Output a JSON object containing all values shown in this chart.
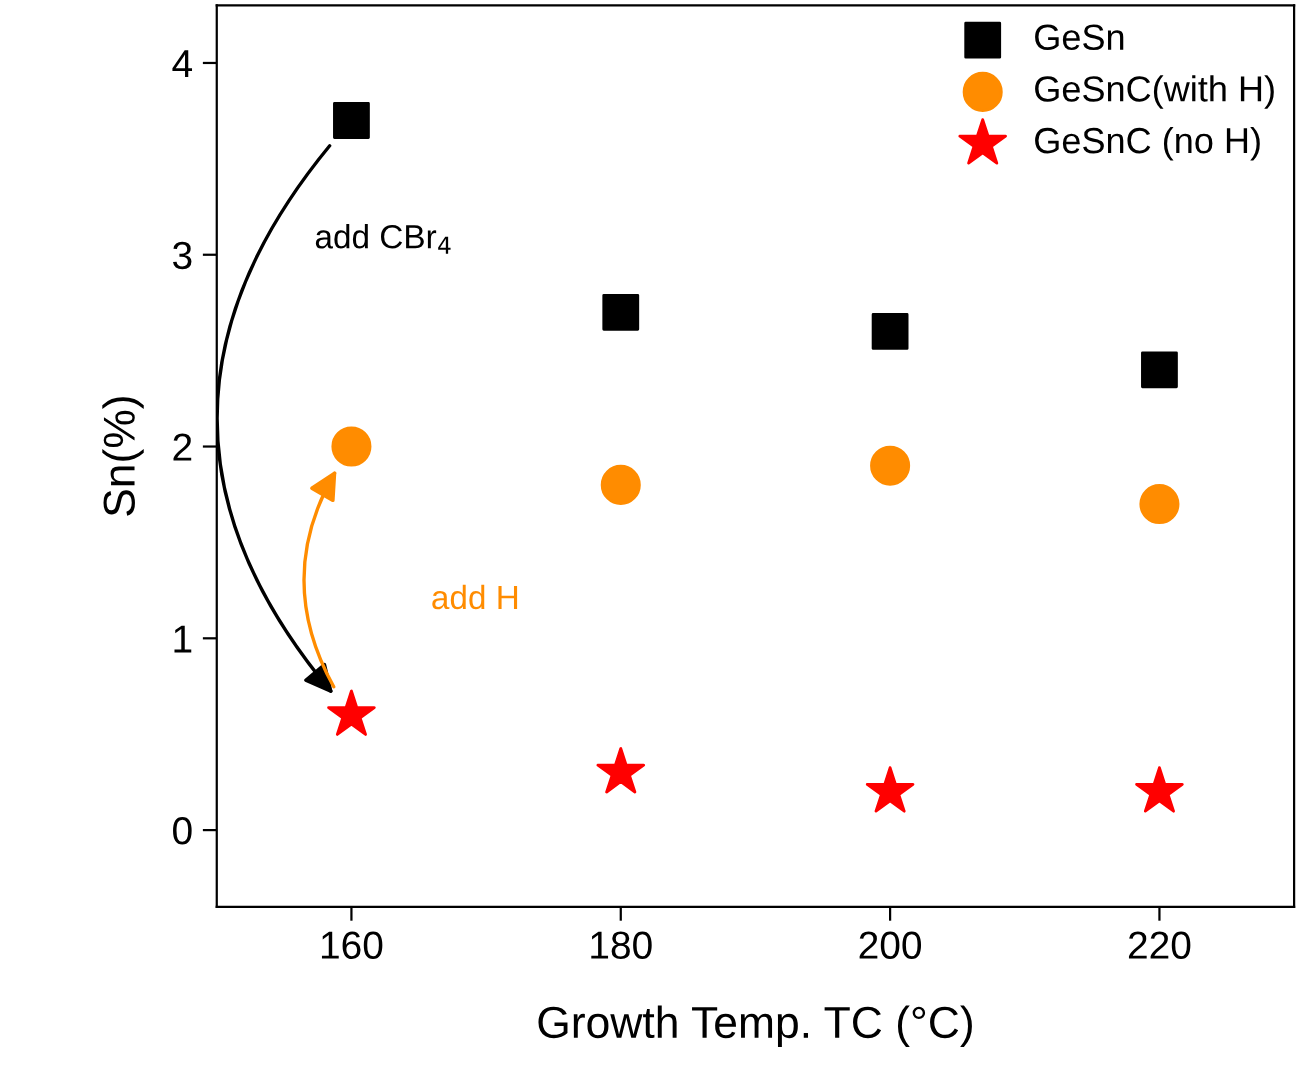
{
  "chart_data": {
    "type": "scatter",
    "xlabel": "Growth Temp. TC (°C)",
    "ylabel": "Sn(%)",
    "x": [
      160,
      180,
      200,
      220
    ],
    "series": [
      {
        "name": "GeSn",
        "color": "#000000",
        "marker": "square",
        "values": [
          3.7,
          2.7,
          2.6,
          2.4
        ]
      },
      {
        "name": "GeSnC(with H)",
        "color": "#ff8c00",
        "marker": "circle",
        "values": [
          2.0,
          1.8,
          1.9,
          1.7
        ]
      },
      {
        "name": "GeSnC (no H)",
        "color": "#ff0000",
        "marker": "star",
        "values": [
          0.6,
          0.3,
          0.2,
          0.2
        ]
      }
    ],
    "xlim": [
      150,
      230
    ],
    "xticks": [
      160,
      180,
      200,
      220
    ],
    "ylim": [
      -0.4,
      4.3
    ],
    "yticks": [
      0,
      1,
      2,
      3,
      4
    ],
    "annotations": [
      "add CBr$_{4}$",
      "add H"
    ],
    "legend": "top right",
    "grid": false
  }
}
